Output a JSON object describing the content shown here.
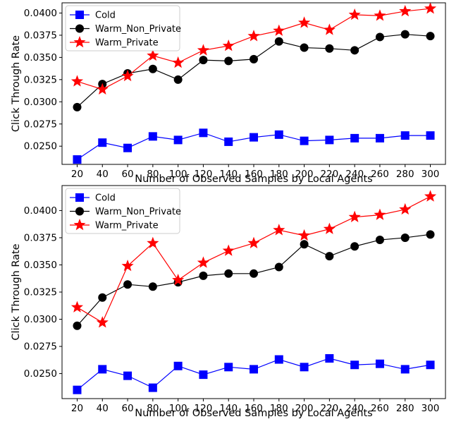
{
  "chart_data": [
    {
      "type": "line",
      "xlabel": "Number of Observed Samples by Local Agents",
      "ylabel": "Click Through Rate",
      "x": [
        20,
        40,
        60,
        80,
        100,
        120,
        140,
        160,
        180,
        200,
        220,
        240,
        260,
        280,
        300
      ],
      "xticks": [
        "20",
        "40",
        "60",
        "80",
        "100",
        "120",
        "140",
        "160",
        "180",
        "200",
        "220",
        "240",
        "260",
        "280",
        "300"
      ],
      "xlim": [
        8,
        312
      ],
      "ylim": [
        0.02295,
        0.04115
      ],
      "yticks": [
        0.025,
        0.0275,
        0.03,
        0.0325,
        0.035,
        0.0375,
        0.04
      ],
      "ytick_labels": [
        "0.0250",
        "0.0275",
        "0.0300",
        "0.0325",
        "0.0350",
        "0.0375",
        "0.0400"
      ],
      "grid": false,
      "legend_position": "top-left",
      "series": [
        {
          "name": "Cold",
          "color": "#0000ff",
          "marker": "square",
          "values": [
            0.0235,
            0.0254,
            0.0248,
            0.0261,
            0.0257,
            0.0265,
            0.0255,
            0.026,
            0.0263,
            0.0256,
            0.0257,
            0.0259,
            0.0259,
            0.0262,
            0.0262
          ]
        },
        {
          "name": "Warm_Non_Private",
          "color": "#000000",
          "marker": "circle",
          "values": [
            0.0294,
            0.032,
            0.0332,
            0.0337,
            0.0325,
            0.0347,
            0.0346,
            0.0348,
            0.0368,
            0.0361,
            0.036,
            0.0358,
            0.0373,
            0.0376,
            0.0374
          ]
        },
        {
          "name": "Warm_Private",
          "color": "#ff0000",
          "marker": "star",
          "values": [
            0.0323,
            0.0314,
            0.0329,
            0.0352,
            0.0344,
            0.0358,
            0.0363,
            0.0374,
            0.038,
            0.0389,
            0.0381,
            0.0398,
            0.0397,
            0.0402,
            0.0405
          ]
        }
      ]
    },
    {
      "type": "line",
      "xlabel": "Number of Observed Samples by Local Agents",
      "ylabel": "Click Through Rate",
      "x": [
        20,
        40,
        60,
        80,
        100,
        120,
        140,
        160,
        180,
        200,
        220,
        240,
        260,
        280,
        300
      ],
      "xticks": [
        "20",
        "40",
        "60",
        "80",
        "100",
        "120",
        "140",
        "160",
        "180",
        "200",
        "220",
        "240",
        "260",
        "280",
        "300"
      ],
      "xlim": [
        8,
        312
      ],
      "ylim": [
        0.0227,
        0.0423
      ],
      "yticks": [
        0.025,
        0.0275,
        0.03,
        0.0325,
        0.035,
        0.0375,
        0.04
      ],
      "ytick_labels": [
        "0.0250",
        "0.0275",
        "0.0300",
        "0.0325",
        "0.0350",
        "0.0375",
        "0.0400"
      ],
      "grid": false,
      "legend_position": "top-left",
      "series": [
        {
          "name": "Cold",
          "color": "#0000ff",
          "marker": "square",
          "values": [
            0.0235,
            0.0254,
            0.0248,
            0.0237,
            0.0257,
            0.0249,
            0.0256,
            0.0254,
            0.0263,
            0.0256,
            0.0264,
            0.0258,
            0.0259,
            0.0254,
            0.0258
          ]
        },
        {
          "name": "Warm_Non_Private",
          "color": "#000000",
          "marker": "circle",
          "values": [
            0.0294,
            0.032,
            0.0332,
            0.033,
            0.0334,
            0.034,
            0.0342,
            0.0342,
            0.0348,
            0.0369,
            0.0358,
            0.0367,
            0.0373,
            0.0375,
            0.0378
          ]
        },
        {
          "name": "Warm_Private",
          "color": "#ff0000",
          "marker": "star",
          "values": [
            0.0311,
            0.0297,
            0.0349,
            0.037,
            0.0336,
            0.0352,
            0.0363,
            0.037,
            0.0382,
            0.0377,
            0.0383,
            0.0394,
            0.0396,
            0.0401,
            0.0413
          ]
        }
      ]
    }
  ]
}
